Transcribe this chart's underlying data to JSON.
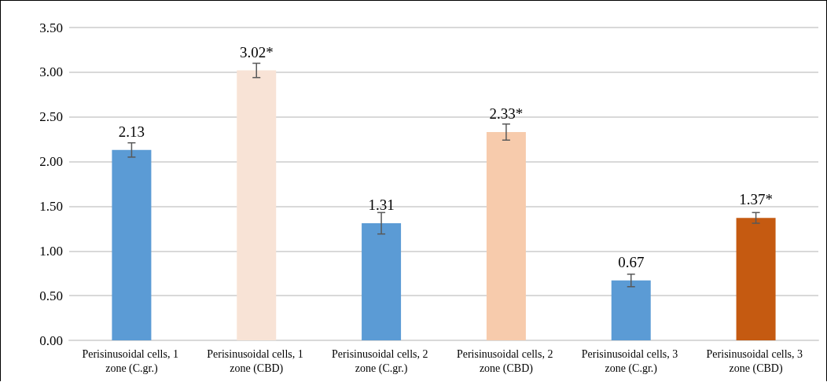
{
  "chart_data": {
    "type": "bar",
    "categories": [
      "Perisinusoidal cells, 1 zone (C.gr.)",
      "Perisinusoidal cells, 1 zone (CBD)",
      "Perisinusoidal cells, 2 zone (C.gr.)",
      "Perisinusoidal cells, 2 zone (CBD)",
      "Perisinusoidal cells, 3 zone (C.gr.)",
      "Perisinusoidal cells, 3 zone (CBD)"
    ],
    "values": [
      2.13,
      3.02,
      1.31,
      2.33,
      0.67,
      1.37
    ],
    "value_labels": [
      "2.13",
      "3.02*",
      "1.31",
      "2.33*",
      "0.67",
      "1.37*"
    ],
    "errors": [
      0.08,
      0.08,
      0.12,
      0.09,
      0.07,
      0.06
    ],
    "colors": [
      "#5b9bd5",
      "#f8e3d6",
      "#5b9bd5",
      "#f7cbac",
      "#5b9bd5",
      "#c55a11"
    ],
    "ylim": [
      0,
      3.5
    ],
    "yticks": [
      {
        "value": 0,
        "label": "0.00"
      },
      {
        "value": 0.5,
        "label": "0.50"
      },
      {
        "value": 1,
        "label": "1.00"
      },
      {
        "value": 1.5,
        "label": "1.50"
      },
      {
        "value": 2,
        "label": "2.00"
      },
      {
        "value": 2.5,
        "label": "2.50"
      },
      {
        "value": 3,
        "label": "3.00"
      },
      {
        "value": 3.5,
        "label": "3.50"
      }
    ],
    "grid": "y"
  }
}
